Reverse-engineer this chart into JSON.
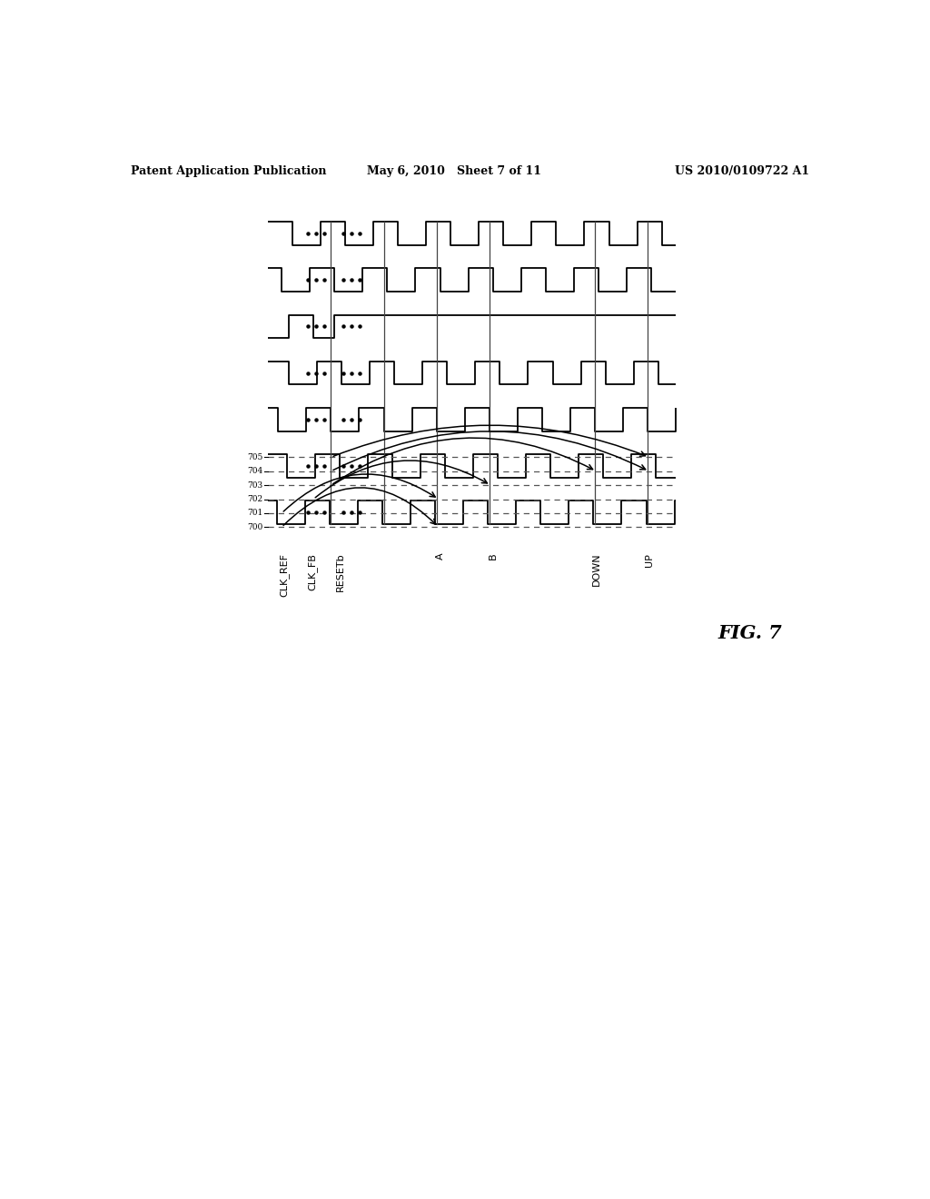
{
  "title_left": "Patent Application Publication",
  "title_mid": "May 6, 2010   Sheet 7 of 11",
  "title_right": "US 2010/0109722 A1",
  "fig_label": "FIG. 7",
  "signals": [
    "CLK_REF",
    "CLK_FB",
    "RESETb",
    "A",
    "B",
    "DOWN",
    "UP"
  ],
  "background_color": "#ffffff",
  "line_color": "#000000"
}
